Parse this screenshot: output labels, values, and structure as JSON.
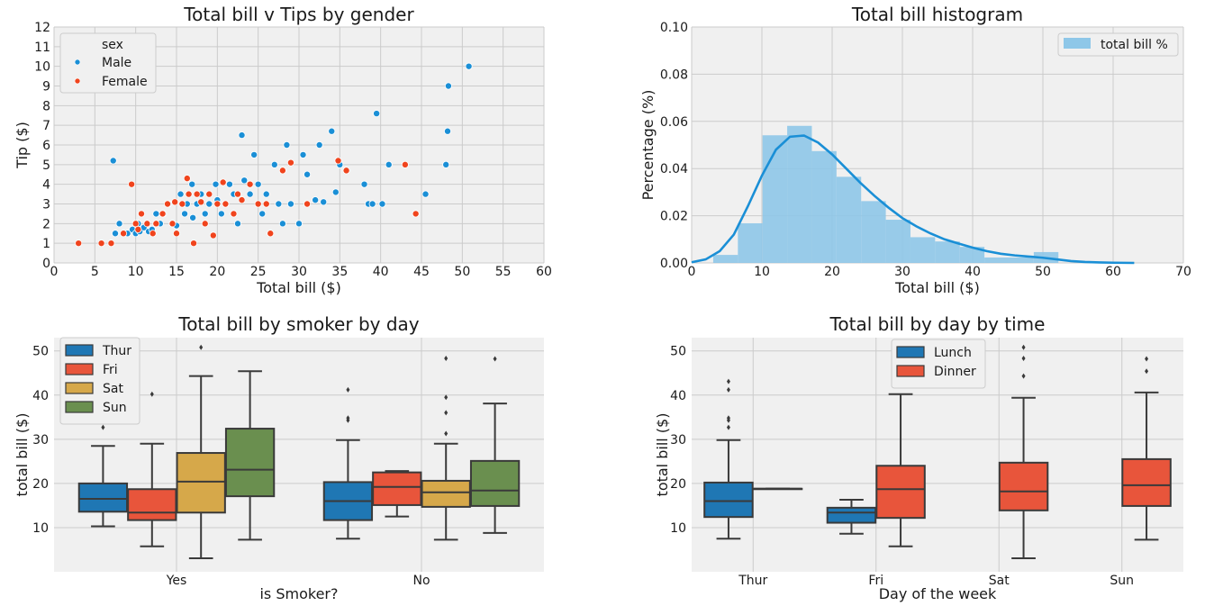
{
  "colors": {
    "male": "#1a8fd6",
    "female": "#f0441d",
    "hist": "#8ec7e8",
    "kde": "#1a8fd6",
    "thur": "#1f77b4",
    "fri": "#e8553b",
    "sat": "#d6a84a",
    "sun": "#6a8f4f",
    "lunch": "#1f77b4",
    "dinner": "#e8553b"
  },
  "chart_data": [
    {
      "type": "scatter",
      "title": "Total bill v Tips by gender",
      "xlabel": "Total bill ($)",
      "ylabel": "Tip ($)",
      "xlim": [
        0,
        60
      ],
      "ylim": [
        0,
        12
      ],
      "xticks": [
        "0",
        "5",
        "10",
        "15",
        "20",
        "25",
        "30",
        "35",
        "40",
        "45",
        "50",
        "55",
        "60"
      ],
      "yticks": [
        "0",
        "1",
        "2",
        "3",
        "4",
        "5",
        "6",
        "7",
        "8",
        "9",
        "10",
        "11",
        "12"
      ],
      "legend_title": "sex",
      "legend_position": "top-left",
      "series": [
        {
          "name": "Male",
          "points": [
            [
              7.25,
              5.2
            ],
            [
              7.5,
              1.5
            ],
            [
              8,
              2
            ],
            [
              9,
              1.5
            ],
            [
              9.6,
              1.7
            ],
            [
              10,
              1.5
            ],
            [
              10.3,
              2
            ],
            [
              10.5,
              1.6
            ],
            [
              11,
              1.8
            ],
            [
              11.6,
              1.6
            ],
            [
              12,
              1.7
            ],
            [
              12.5,
              2.5
            ],
            [
              13,
              2
            ],
            [
              13.4,
              2.5
            ],
            [
              14,
              3
            ],
            [
              14.5,
              2
            ],
            [
              15,
              1.9
            ],
            [
              15.5,
              3.5
            ],
            [
              16,
              2.5
            ],
            [
              16.3,
              3
            ],
            [
              16.9,
              4
            ],
            [
              17,
              2.3
            ],
            [
              17.5,
              3
            ],
            [
              18,
              3.5
            ],
            [
              18.5,
              2.5
            ],
            [
              19,
              3
            ],
            [
              19.8,
              4
            ],
            [
              20,
              3.2
            ],
            [
              20.5,
              2.5
            ],
            [
              21,
              3
            ],
            [
              21.5,
              4
            ],
            [
              22,
              3.5
            ],
            [
              22.5,
              2
            ],
            [
              23,
              6.5
            ],
            [
              23.3,
              4.2
            ],
            [
              24,
              3.5
            ],
            [
              24.5,
              5.5
            ],
            [
              25,
              4
            ],
            [
              25.5,
              2.5
            ],
            [
              26,
              3.5
            ],
            [
              27,
              5
            ],
            [
              27.5,
              3
            ],
            [
              28,
              2
            ],
            [
              28.5,
              6
            ],
            [
              29,
              3
            ],
            [
              30,
              2
            ],
            [
              30.5,
              5.5
            ],
            [
              31,
              4.5
            ],
            [
              32,
              3.2
            ],
            [
              32.5,
              6
            ],
            [
              33,
              3.1
            ],
            [
              34,
              6.7
            ],
            [
              34.5,
              3.6
            ],
            [
              35,
              5
            ],
            [
              38,
              4
            ],
            [
              38.5,
              3
            ],
            [
              39,
              3
            ],
            [
              39.5,
              7.6
            ],
            [
              40.2,
              3
            ],
            [
              41,
              5
            ],
            [
              45.5,
              3.5
            ],
            [
              48,
              5
            ],
            [
              48.2,
              6.7
            ],
            [
              48.3,
              9
            ],
            [
              50.8,
              10
            ]
          ]
        },
        {
          "name": "Female",
          "points": [
            [
              3,
              1
            ],
            [
              5.8,
              1
            ],
            [
              7,
              1
            ],
            [
              8.5,
              1.5
            ],
            [
              9.5,
              4
            ],
            [
              10,
              2
            ],
            [
              10.3,
              1.7
            ],
            [
              10.7,
              2.5
            ],
            [
              11.4,
              2
            ],
            [
              12.1,
              1.5
            ],
            [
              12.5,
              2
            ],
            [
              13.3,
              2.5
            ],
            [
              13.9,
              3
            ],
            [
              14.5,
              2
            ],
            [
              14.8,
              3.1
            ],
            [
              15,
              1.5
            ],
            [
              15.7,
              3
            ],
            [
              16.3,
              4.3
            ],
            [
              16.5,
              3.5
            ],
            [
              17.1,
              1
            ],
            [
              17.5,
              3.5
            ],
            [
              18,
              3.1
            ],
            [
              18.5,
              2
            ],
            [
              19,
              3.5
            ],
            [
              19.5,
              1.4
            ],
            [
              20,
              3
            ],
            [
              20.7,
              4.1
            ],
            [
              21,
              3
            ],
            [
              22,
              2.5
            ],
            [
              22.5,
              3.5
            ],
            [
              23,
              3.2
            ],
            [
              24,
              4
            ],
            [
              25,
              3
            ],
            [
              26,
              3
            ],
            [
              26.5,
              1.5
            ],
            [
              28,
              4.7
            ],
            [
              29,
              5.1
            ],
            [
              31,
              3
            ],
            [
              34.8,
              5.2
            ],
            [
              35.8,
              4.7
            ],
            [
              43,
              5
            ],
            [
              44.3,
              2.5
            ]
          ]
        }
      ]
    },
    {
      "type": "histogram",
      "title": "Total bill histogram",
      "xlabel": "Total bill ($)",
      "ylabel": "Percentage (%)",
      "xlim": [
        0,
        70
      ],
      "ylim": [
        0,
        0.1
      ],
      "xticks": [
        "0",
        "10",
        "20",
        "30",
        "40",
        "50",
        "60",
        "70"
      ],
      "yticks": [
        "0.00",
        "0.02",
        "0.04",
        "0.06",
        "0.08",
        "0.10"
      ],
      "legend": "total bill %",
      "legend_position": "top-right",
      "bin_edges": [
        3.07,
        6.58,
        10.09,
        13.6,
        17.11,
        20.62,
        24.13,
        27.64,
        31.15,
        34.66,
        38.17,
        41.68,
        45.19,
        48.7,
        52.21
      ],
      "densities": [
        0.0034,
        0.0168,
        0.0541,
        0.0581,
        0.0474,
        0.0365,
        0.0262,
        0.0183,
        0.0109,
        0.0091,
        0.0068,
        0.0023,
        0.0023,
        0.0046
      ],
      "kde": {
        "x": [
          0,
          2,
          4,
          6,
          8,
          10,
          12,
          14,
          16,
          18,
          20,
          22,
          24,
          26,
          28,
          30,
          32,
          34,
          36,
          38,
          40,
          42,
          44,
          46,
          48,
          50,
          52,
          54,
          56,
          58,
          60,
          63
        ],
        "y": [
          0.0003,
          0.0015,
          0.005,
          0.012,
          0.024,
          0.037,
          0.048,
          0.0535,
          0.054,
          0.051,
          0.046,
          0.04,
          0.034,
          0.0285,
          0.0235,
          0.019,
          0.0155,
          0.0125,
          0.01,
          0.0082,
          0.0065,
          0.005,
          0.0039,
          0.0032,
          0.0027,
          0.0022,
          0.0015,
          0.0008,
          0.0004,
          0.0002,
          0.0001,
          0.0
        ]
      }
    },
    {
      "type": "boxplot",
      "title": "Total bill by smoker by day",
      "xlabel": "is Smoker?",
      "ylabel": "total bill ($)",
      "ylim": [
        0,
        53
      ],
      "yticks": [
        10,
        20,
        30,
        40,
        50
      ],
      "categories": [
        "Yes",
        "No"
      ],
      "hue": [
        "Thur",
        "Fri",
        "Sat",
        "Sun"
      ],
      "legend_position": "top-left",
      "boxes": [
        {
          "cat": 0,
          "hue": 0,
          "whislo": 10.3,
          "q1": 13.6,
          "med": 16.5,
          "q3": 20,
          "whishi": 28.5,
          "fliers": [
            32.7
          ]
        },
        {
          "cat": 0,
          "hue": 1,
          "whislo": 5.75,
          "q1": 11.7,
          "med": 13.4,
          "q3": 18.7,
          "whishi": 29,
          "fliers": [
            40.2
          ]
        },
        {
          "cat": 0,
          "hue": 2,
          "whislo": 3.07,
          "q1": 13.4,
          "med": 20.4,
          "q3": 26.9,
          "whishi": 44.3,
          "fliers": [
            50.8
          ]
        },
        {
          "cat": 0,
          "hue": 3,
          "whislo": 7.25,
          "q1": 17.1,
          "med": 23.1,
          "q3": 32.4,
          "whishi": 45.4,
          "fliers": []
        },
        {
          "cat": 1,
          "hue": 0,
          "whislo": 7.5,
          "q1": 11.7,
          "med": 16,
          "q3": 20.3,
          "whishi": 29.8,
          "fliers": [
            34.3,
            34.8,
            41.2
          ]
        },
        {
          "cat": 1,
          "hue": 1,
          "whislo": 12.5,
          "q1": 15.1,
          "med": 19.2,
          "q3": 22.5,
          "whishi": 22.8,
          "fliers": []
        },
        {
          "cat": 1,
          "hue": 2,
          "whislo": 7.25,
          "q1": 14.7,
          "med": 18,
          "q3": 20.6,
          "whishi": 29,
          "fliers": [
            31.3,
            36,
            39.5,
            48.3
          ]
        },
        {
          "cat": 1,
          "hue": 3,
          "whislo": 8.8,
          "q1": 14.9,
          "med": 18.4,
          "q3": 25.1,
          "whishi": 38.1,
          "fliers": [
            48.2
          ]
        }
      ]
    },
    {
      "type": "boxplot",
      "title": "Total bill by day by time",
      "xlabel": "Day of the week",
      "ylabel": "total bill ($)",
      "ylim": [
        0,
        53
      ],
      "yticks": [
        10,
        20,
        30,
        40,
        50
      ],
      "categories": [
        "Thur",
        "Fri",
        "Sat",
        "Sun"
      ],
      "hue": [
        "Lunch",
        "Dinner"
      ],
      "legend_position": "top-center",
      "boxes": [
        {
          "cat": 0,
          "hue": 0,
          "whislo": 7.5,
          "q1": 12.4,
          "med": 16,
          "q3": 20.2,
          "whishi": 29.8,
          "fliers": [
            32.7,
            34.3,
            34.8,
            41.2,
            43.1
          ]
        },
        {
          "cat": 0,
          "hue": 1,
          "whislo": 18.8,
          "q1": 18.8,
          "med": 18.8,
          "q3": 18.8,
          "whishi": 18.8,
          "fliers": []
        },
        {
          "cat": 1,
          "hue": 0,
          "whislo": 8.6,
          "q1": 11.1,
          "med": 13.4,
          "q3": 14.5,
          "whishi": 16.3,
          "fliers": []
        },
        {
          "cat": 1,
          "hue": 1,
          "whislo": 5.75,
          "q1": 12.2,
          "med": 18.7,
          "q3": 24,
          "whishi": 40.2,
          "fliers": []
        },
        {
          "cat": 2,
          "hue": 1,
          "whislo": 3.07,
          "q1": 13.9,
          "med": 18.2,
          "q3": 24.7,
          "whishi": 39.4,
          "fliers": [
            44.3,
            48.3,
            50.8
          ]
        },
        {
          "cat": 3,
          "hue": 1,
          "whislo": 7.25,
          "q1": 14.9,
          "med": 19.6,
          "q3": 25.5,
          "whishi": 40.6,
          "fliers": [
            45.4,
            48.2
          ]
        }
      ]
    }
  ]
}
